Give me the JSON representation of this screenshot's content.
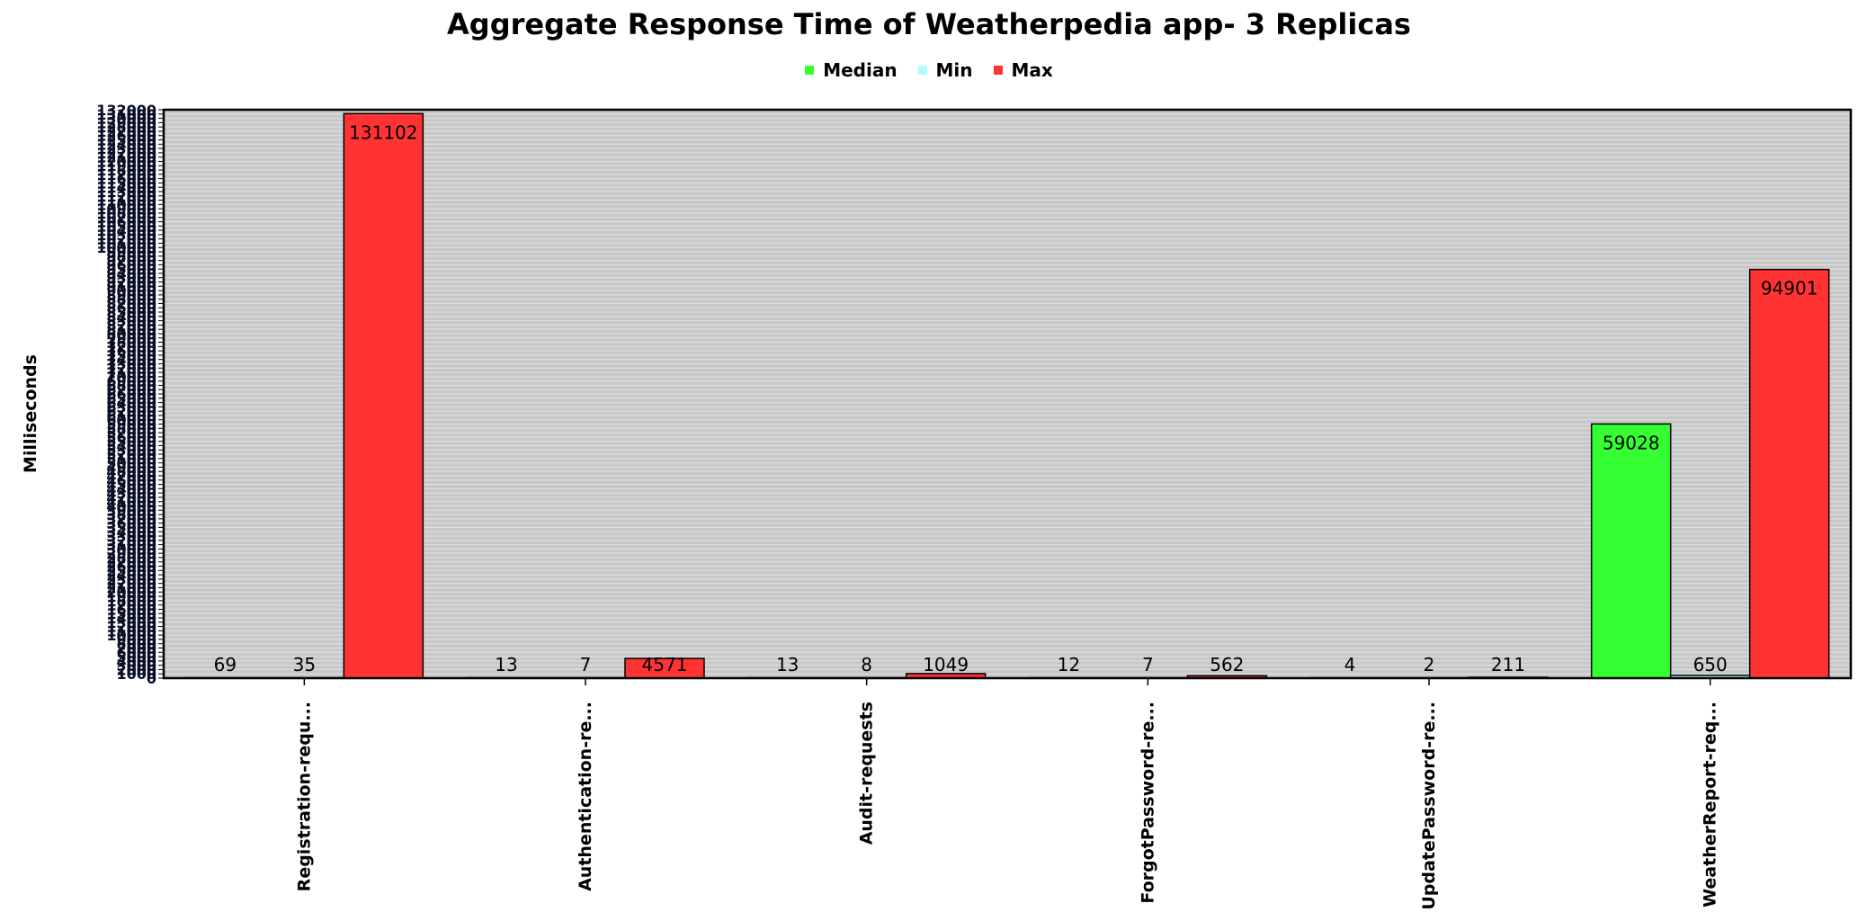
{
  "chart_data": {
    "type": "bar",
    "title": "Aggregate Response Time of Weatherpedia app- 3 Replicas",
    "xlabel": "",
    "ylabel": "Milliseconds",
    "ylim": [
      0,
      132000
    ],
    "grid": true,
    "legend_position": "top-center",
    "categories": [
      "Registration-requ...",
      "Authentication-re...",
      "Audit-requests",
      "ForgotPassword-re...",
      "UpdatePassword-re...",
      "WeatherReport-req..."
    ],
    "series": [
      {
        "name": "Median",
        "color": "#33ff33",
        "values": [
          69,
          13,
          13,
          12,
          4,
          59028
        ]
      },
      {
        "name": "Min",
        "color": "#aaffff",
        "values": [
          35,
          7,
          8,
          7,
          2,
          650
        ]
      },
      {
        "name": "Max",
        "color": "#ff3333",
        "values": [
          131102,
          4571,
          1049,
          562,
          211,
          94901
        ]
      }
    ]
  }
}
